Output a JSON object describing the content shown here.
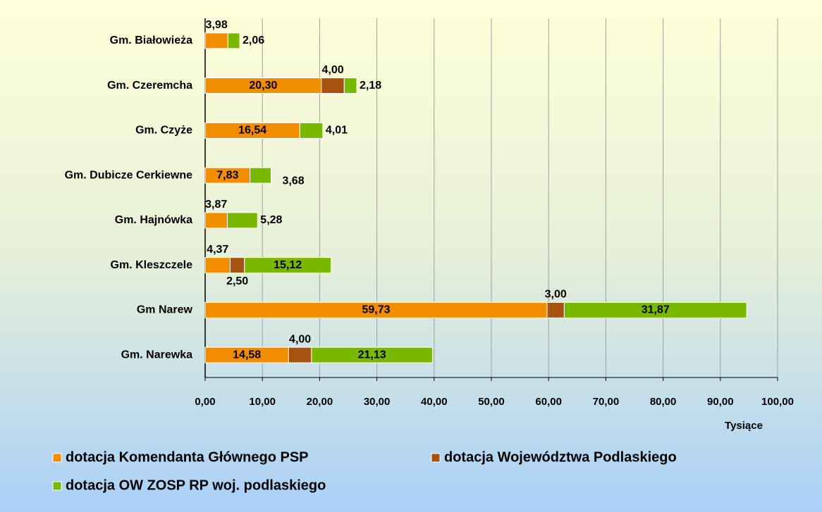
{
  "chart_data": {
    "type": "stacked_barh",
    "categories": [
      "Gm. Białowieża",
      "Gm. Czeremcha",
      "Gm. Czyże",
      "Gm. Dubicze Cerkiewne",
      "Gm. Hajnówka",
      "Gm. Kleszczele",
      "Gm Narew",
      "Gm. Narewka"
    ],
    "series": [
      {
        "name": "dotacja Komendanta Głównego PSP",
        "color": "#f28c00",
        "values": [
          3.98,
          20.3,
          16.54,
          7.83,
          3.87,
          4.37,
          59.73,
          14.58
        ],
        "value_labels": [
          "3,98",
          "20,30",
          "16,54",
          "7,83",
          "3,87",
          "4,37",
          "59,73",
          "14,58"
        ]
      },
      {
        "name": "dotacja Województwa Podlaskiego",
        "color": "#a65210",
        "values": [
          null,
          4.0,
          null,
          null,
          null,
          2.5,
          3.0,
          4.0
        ],
        "value_labels": [
          null,
          "4,00",
          null,
          null,
          null,
          "2,50",
          "3,00",
          "4,00"
        ]
      },
      {
        "name": "dotacja OW ZOSP RP woj. podlaskiego",
        "color": "#78b800",
        "values": [
          2.06,
          2.18,
          4.01,
          3.68,
          5.28,
          15.12,
          31.87,
          21.13
        ],
        "value_labels": [
          "2,06",
          "2,18",
          "4,01",
          "3,68",
          "5,28",
          "15,12",
          "31,87",
          "21,13"
        ]
      }
    ],
    "xlabel": "Tysiące",
    "xlim": [
      0,
      100
    ],
    "xticks": [
      {
        "value": 0,
        "label": "0,00"
      },
      {
        "value": 10,
        "label": "10,00"
      },
      {
        "value": 20,
        "label": "20,00"
      },
      {
        "value": 30,
        "label": "30,00"
      },
      {
        "value": 40,
        "label": "40,00"
      },
      {
        "value": 50,
        "label": "50,00"
      },
      {
        "value": 60,
        "label": "60,00"
      },
      {
        "value": 70,
        "label": "70,00"
      },
      {
        "value": 80,
        "label": "80,00"
      },
      {
        "value": 90,
        "label": "90,00"
      },
      {
        "value": 100,
        "label": "100,00"
      }
    ],
    "grid": true
  }
}
